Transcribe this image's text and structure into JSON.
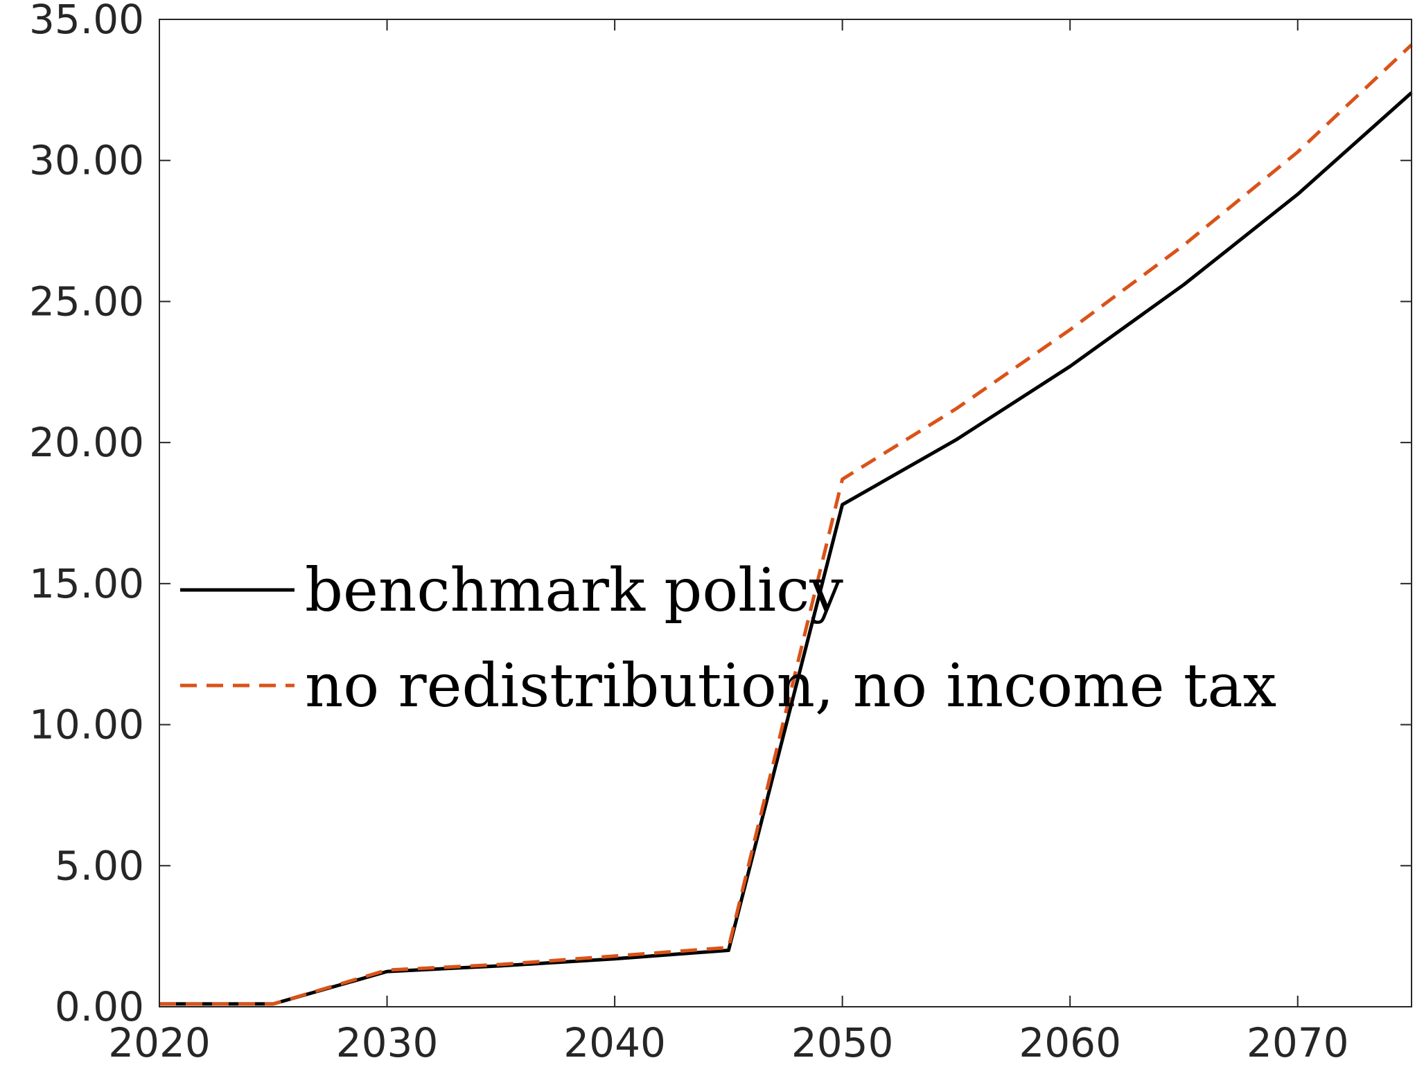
{
  "chart_data": {
    "type": "line",
    "title": "",
    "xlabel": "",
    "ylabel": "",
    "xlim": [
      2020,
      2075
    ],
    "ylim": [
      0,
      35
    ],
    "x_ticks": [
      2020,
      2030,
      2040,
      2050,
      2060,
      2070
    ],
    "y_ticks": [
      0,
      5,
      10,
      15,
      20,
      25,
      30,
      35
    ],
    "x_tick_labels": [
      "2020",
      "2030",
      "2040",
      "2050",
      "2060",
      "2070"
    ],
    "y_tick_labels": [
      "0.00",
      "5.00",
      "10.00",
      "15.00",
      "20.00",
      "25.00",
      "30.00",
      "35.00"
    ],
    "grid": false,
    "legend_position": "center-left",
    "x": [
      2020,
      2025,
      2030,
      2035,
      2040,
      2045,
      2050,
      2055,
      2060,
      2065,
      2070,
      2075
    ],
    "series": [
      {
        "name": "benchmark policy",
        "color": "#000000",
        "style": "solid",
        "values": [
          0.1,
          0.1,
          1.25,
          1.45,
          1.7,
          2.0,
          17.8,
          20.1,
          22.7,
          25.6,
          28.8,
          32.4
        ]
      },
      {
        "name": "no redistribution, no income tax",
        "color": "#D95319",
        "style": "dashed",
        "values": [
          0.1,
          0.1,
          1.3,
          1.5,
          1.8,
          2.1,
          18.7,
          21.2,
          24.0,
          27.0,
          30.3,
          34.1
        ]
      }
    ]
  }
}
